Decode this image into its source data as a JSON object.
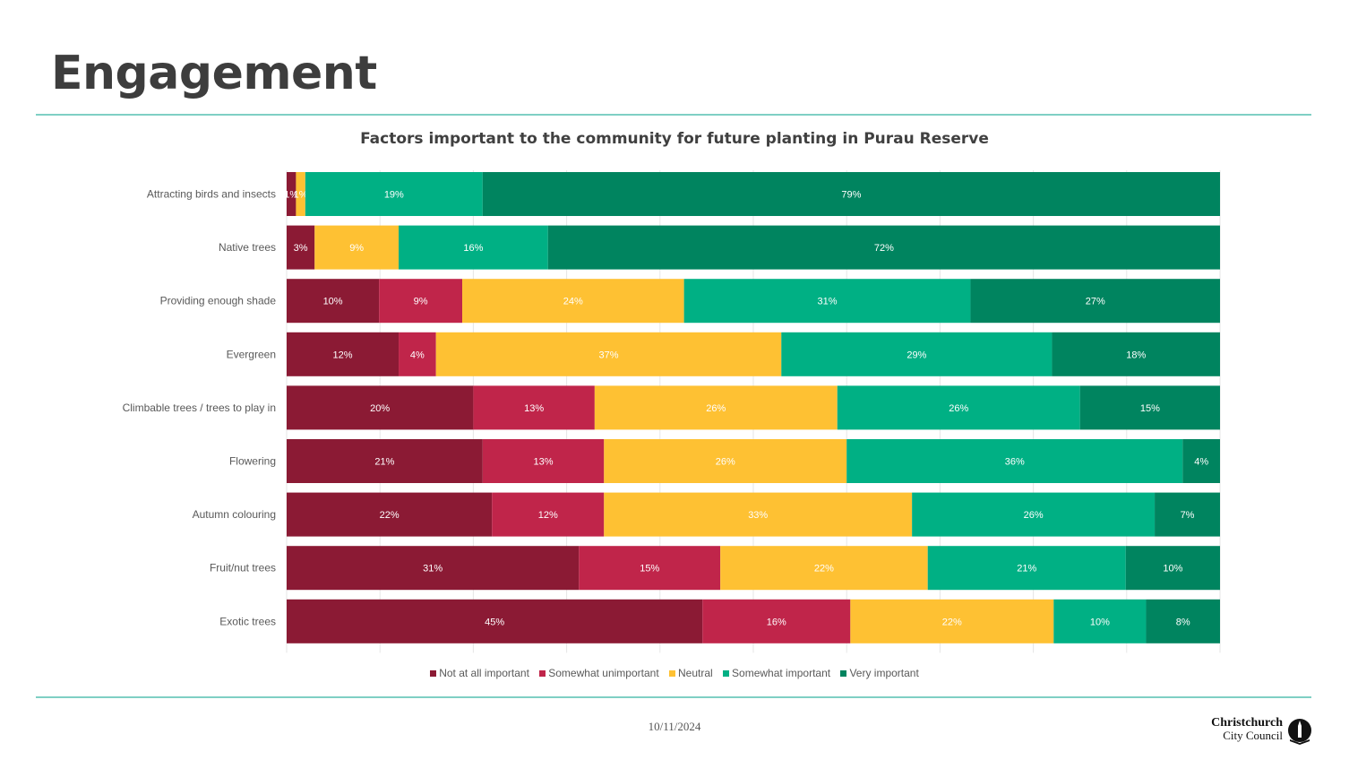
{
  "page": {
    "title": "Engagement",
    "date": "10/11/2024",
    "logo": {
      "line1": "Christchurch",
      "line2": "City Council"
    }
  },
  "colors": {
    "not_at_all": "#8b1a34",
    "somewhat_unimportant": "#c0254a",
    "neutral": "#fec133",
    "somewhat_important": "#00b084",
    "very_important": "#00845f",
    "rule": "#7fcfc4"
  },
  "chart_data": {
    "type": "bar",
    "orientation": "horizontal",
    "stacked": "100%",
    "title": "Factors important to the community for future planting in Purau Reserve",
    "xlabel": "",
    "ylabel": "",
    "xlim": [
      0,
      100
    ],
    "grid": true,
    "legend_position": "bottom",
    "categories": [
      "Attracting birds and insects",
      "Native trees",
      "Providing enough shade",
      "Evergreen",
      "Climbable trees / trees to play in",
      "Flowering",
      "Autumn colouring",
      "Fruit/nut trees",
      "Exotic trees"
    ],
    "series": [
      {
        "name": "Not at all important",
        "values": [
          1,
          3,
          10,
          12,
          20,
          21,
          22,
          31,
          45
        ]
      },
      {
        "name": "Somewhat unimportant",
        "values": [
          0,
          0,
          9,
          4,
          13,
          13,
          12,
          15,
          16
        ]
      },
      {
        "name": "Neutral",
        "values": [
          1,
          9,
          24,
          37,
          26,
          26,
          33,
          22,
          22
        ]
      },
      {
        "name": "Somewhat important",
        "values": [
          19,
          16,
          31,
          29,
          26,
          36,
          26,
          21,
          10
        ]
      },
      {
        "name": "Very important",
        "values": [
          79,
          72,
          27,
          18,
          15,
          4,
          7,
          10,
          8
        ]
      }
    ]
  }
}
